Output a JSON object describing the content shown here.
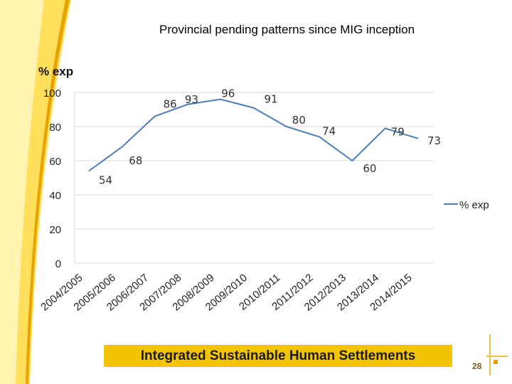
{
  "slide": {
    "title": "Provincial pending patterns since MIG inception",
    "footer": "Integrated Sustainable Human Settlements",
    "page_number": "28"
  },
  "colors": {
    "series_line": "#4a7ebb",
    "gridline": "#d9d9d9",
    "banner": "#f5c400",
    "swoosh_light": "#fff3b0",
    "swoosh_mid": "#ffdf5a",
    "swoosh_accent": "#e8a300"
  },
  "chart_data": {
    "type": "line",
    "title": "",
    "xlabel": "",
    "ylabel": "% exp",
    "ylim": [
      0,
      100
    ],
    "yticks": [
      0,
      20,
      40,
      60,
      80,
      100
    ],
    "grid": true,
    "legend_position": "right",
    "categories": [
      "2004/2005",
      "2005/2006",
      "2006/2007",
      "2007/2008",
      "2008/2009",
      "2009/2010",
      "2010/2011",
      "2011/2012",
      "2012/2013",
      "2013/2014",
      "2014/2015"
    ],
    "series": [
      {
        "name": "% exp",
        "values": [
          54,
          68,
          86,
          93,
          96,
          91,
          80,
          74,
          60,
          79,
          73
        ]
      }
    ]
  }
}
